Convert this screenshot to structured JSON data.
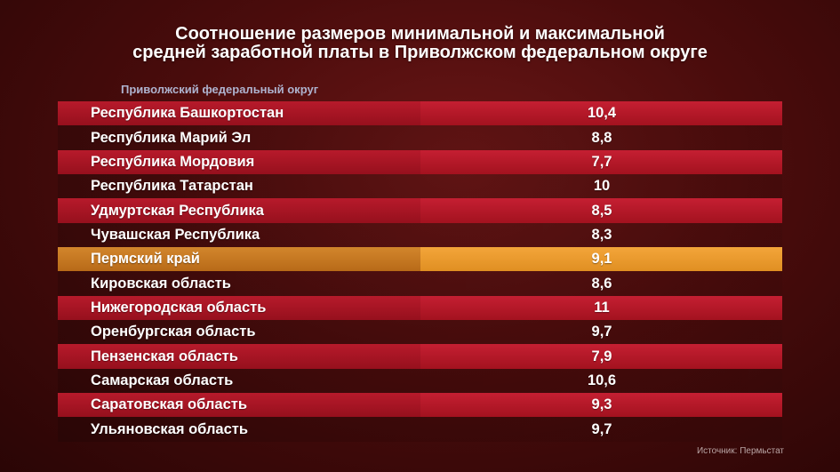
{
  "chart_data": {
    "type": "table",
    "title_lines": [
      "Соотношение размеров минимальной и максимальной",
      "средней заработной платы в Приволжском федеральном округе"
    ],
    "subtitle": "Приволжский федеральный округ",
    "highlight_row": "Пермский край",
    "colors": {
      "row_red": "#b71a2b",
      "row_red_value": "#c51f32",
      "row_highlight": "#d2862c",
      "row_highlight_value": "#f3a53a",
      "background": "#4a0c0c"
    },
    "rows": [
      {
        "region": "Республика Башкортостан",
        "value": "10,4"
      },
      {
        "region": "Республика Марий Эл",
        "value": "8,8"
      },
      {
        "region": "Республика Мордовия",
        "value": "7,7"
      },
      {
        "region": "Республика Татарстан",
        "value": "10"
      },
      {
        "region": "Удмуртская Республика",
        "value": "8,5"
      },
      {
        "region": "Чувашская Республика",
        "value": "8,3"
      },
      {
        "region": "Пермский край",
        "value": "9,1"
      },
      {
        "region": "Кировская область",
        "value": "8,6"
      },
      {
        "region": "Нижегородская область",
        "value": "11"
      },
      {
        "region": "Оренбургская область",
        "value": "9,7"
      },
      {
        "region": "Пензенская область",
        "value": "7,9"
      },
      {
        "region": "Самарская область",
        "value": "10,6"
      },
      {
        "region": "Саратовская область",
        "value": "9,3"
      },
      {
        "region": "Ульяновская область",
        "value": "9,7"
      }
    ],
    "source": "Источник: Пермьстат"
  }
}
